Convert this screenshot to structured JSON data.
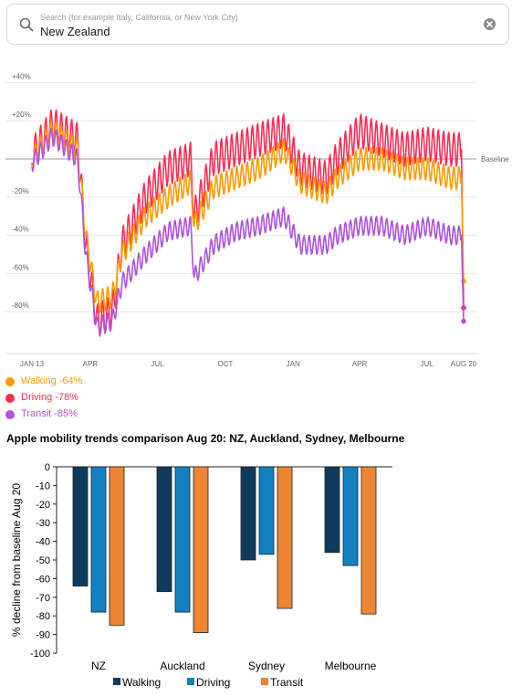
{
  "search": {
    "placeholder": "Search (for example Italy, California, or New York City)",
    "value": "New Zealand"
  },
  "icons": {
    "search": "search-icon",
    "clear": "close-icon"
  },
  "colors": {
    "walking": "#ff9a00",
    "driving": "#ff2d55",
    "transit": "#af52de",
    "bar_walking": "#0d3b5e",
    "bar_driving": "#1380c2",
    "bar_transit": "#ef8433"
  },
  "chart_data": [
    {
      "type": "line",
      "baseline_label": "Baseline",
      "y_ticks": [
        "+40%",
        "+20%",
        "",
        "-20%",
        "-40%",
        "-60%",
        "-80%"
      ],
      "y_tick_values": [
        40,
        20,
        0,
        -20,
        -40,
        -60,
        -80
      ],
      "x_ticks": [
        "JAN 13",
        "APR",
        "JUL",
        "OCT",
        "JAN",
        "APR",
        "JUL",
        "AUG 20"
      ],
      "x_tick_values": [
        "2020-01-13",
        "2020-04-01",
        "2020-07-01",
        "2020-10-01",
        "2021-01-01",
        "2021-04-01",
        "2021-07-01",
        "2021-08-20"
      ],
      "ylim": [
        -100,
        45
      ],
      "xlim": [
        "2020-01-13",
        "2021-08-20"
      ],
      "series": [
        {
          "name": "Walking",
          "label": "Walking -64%",
          "final_value": -64,
          "keypoints": [
            [
              "2020-01-13",
              0
            ],
            [
              "2020-02-10",
              15
            ],
            [
              "2020-03-15",
              5
            ],
            [
              "2020-03-26",
              -40
            ],
            [
              "2020-04-10",
              -75
            ],
            [
              "2020-05-01",
              -72
            ],
            [
              "2020-05-14",
              -50
            ],
            [
              "2020-06-15",
              -30
            ],
            [
              "2020-07-15",
              -20
            ],
            [
              "2020-08-15",
              -12
            ],
            [
              "2020-08-20",
              -35
            ],
            [
              "2020-09-15",
              -15
            ],
            [
              "2020-10-15",
              -10
            ],
            [
              "2020-11-15",
              -5
            ],
            [
              "2020-12-20",
              5
            ],
            [
              "2021-01-10",
              -12
            ],
            [
              "2021-02-15",
              -18
            ],
            [
              "2021-03-01",
              -10
            ],
            [
              "2021-04-01",
              0
            ],
            [
              "2021-05-01",
              0
            ],
            [
              "2021-06-01",
              -5
            ],
            [
              "2021-07-01",
              -5
            ],
            [
              "2021-08-01",
              -10
            ],
            [
              "2021-08-17",
              -10
            ],
            [
              "2021-08-20",
              -64
            ]
          ]
        },
        {
          "name": "Driving",
          "label": "Driving -78%",
          "final_value": -78,
          "keypoints": [
            [
              "2020-01-13",
              2
            ],
            [
              "2020-02-10",
              18
            ],
            [
              "2020-03-15",
              10
            ],
            [
              "2020-03-26",
              -45
            ],
            [
              "2020-04-10",
              -85
            ],
            [
              "2020-05-01",
              -80
            ],
            [
              "2020-05-14",
              -45
            ],
            [
              "2020-06-15",
              -20
            ],
            [
              "2020-07-15",
              -5
            ],
            [
              "2020-08-15",
              0
            ],
            [
              "2020-08-20",
              -30
            ],
            [
              "2020-09-15",
              0
            ],
            [
              "2020-10-15",
              5
            ],
            [
              "2020-11-15",
              10
            ],
            [
              "2020-12-20",
              15
            ],
            [
              "2021-01-10",
              -5
            ],
            [
              "2021-02-15",
              -10
            ],
            [
              "2021-03-01",
              0
            ],
            [
              "2021-04-01",
              15
            ],
            [
              "2021-05-01",
              10
            ],
            [
              "2021-06-01",
              5
            ],
            [
              "2021-07-01",
              8
            ],
            [
              "2021-08-01",
              5
            ],
            [
              "2021-08-17",
              5
            ],
            [
              "2021-08-20",
              -78
            ]
          ]
        },
        {
          "name": "Transit",
          "label": "Transit -85%",
          "final_value": -85,
          "keypoints": [
            [
              "2020-01-13",
              -2
            ],
            [
              "2020-02-10",
              12
            ],
            [
              "2020-03-15",
              0
            ],
            [
              "2020-03-26",
              -50
            ],
            [
              "2020-04-10",
              -88
            ],
            [
              "2020-05-01",
              -85
            ],
            [
              "2020-05-14",
              -65
            ],
            [
              "2020-06-15",
              -50
            ],
            [
              "2020-07-15",
              -38
            ],
            [
              "2020-08-15",
              -35
            ],
            [
              "2020-08-20",
              -62
            ],
            [
              "2020-09-15",
              -45
            ],
            [
              "2020-10-15",
              -38
            ],
            [
              "2020-11-15",
              -35
            ],
            [
              "2020-12-20",
              -30
            ],
            [
              "2021-01-10",
              -45
            ],
            [
              "2021-02-15",
              -45
            ],
            [
              "2021-03-01",
              -40
            ],
            [
              "2021-04-01",
              -35
            ],
            [
              "2021-05-01",
              -35
            ],
            [
              "2021-06-01",
              -40
            ],
            [
              "2021-07-01",
              -35
            ],
            [
              "2021-08-01",
              -40
            ],
            [
              "2021-08-17",
              -40
            ],
            [
              "2021-08-20",
              -85
            ]
          ]
        }
      ]
    },
    {
      "type": "bar",
      "title": "Apple mobility trends comparison Aug 20: NZ, Auckland, Sydney, Melbourne",
      "ylabel": "% decline from baseline Aug 20",
      "ylim": [
        -100,
        0
      ],
      "y_ticks": [
        0,
        -10,
        -20,
        -30,
        -40,
        -50,
        -60,
        -70,
        -80,
        -90,
        -100
      ],
      "categories": [
        "NZ",
        "Auckland",
        "Sydney",
        "Melbourne"
      ],
      "series": [
        {
          "name": "Walking",
          "values": [
            -64,
            -67,
            -50,
            -46
          ]
        },
        {
          "name": "Driving",
          "values": [
            -78,
            -78,
            -47,
            -53
          ]
        },
        {
          "name": "Transit",
          "values": [
            -85,
            -89,
            -76,
            -79
          ]
        }
      ],
      "legend_position": "bottom"
    }
  ]
}
